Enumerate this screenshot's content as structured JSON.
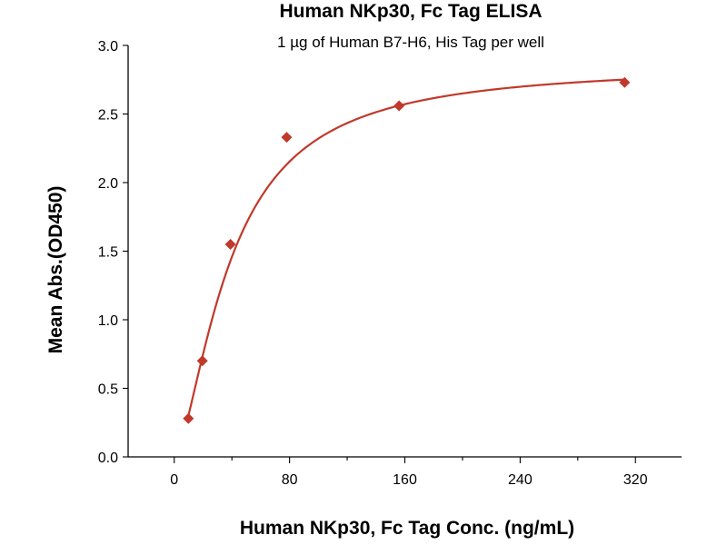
{
  "chart_data": {
    "type": "scatter",
    "title": "Human NKp30, Fc Tag ELISA",
    "subtitle": "1 µg of Human B7-H6, His Tag per well",
    "xlabel": "Human NKp30, Fc Tag Conc. (ng/mL)",
    "ylabel": "Mean Abs.(OD450)",
    "xlim": [
      -32,
      352
    ],
    "ylim": [
      0,
      3.0
    ],
    "x_ticks": [
      0,
      80,
      160,
      240,
      320
    ],
    "y_ticks": [
      0.0,
      0.5,
      1.0,
      1.5,
      2.0,
      2.5,
      3.0
    ],
    "x_tick_labels": [
      "0",
      "80",
      "160",
      "240",
      "320"
    ],
    "y_tick_labels": [
      "0.0",
      "0.5",
      "1.0",
      "1.5",
      "2.0",
      "2.5",
      "3.0"
    ],
    "grid": false,
    "series": [
      {
        "color": "#c0392b",
        "marker": "diamond",
        "fit": "four-parameter logistic curve",
        "points": [
          {
            "x": 9.8,
            "y": 0.28
          },
          {
            "x": 19.5,
            "y": 0.7
          },
          {
            "x": 39,
            "y": 1.55
          },
          {
            "x": 78,
            "y": 2.33
          },
          {
            "x": 156,
            "y": 2.56
          },
          {
            "x": 312.5,
            "y": 2.73
          }
        ]
      }
    ]
  }
}
